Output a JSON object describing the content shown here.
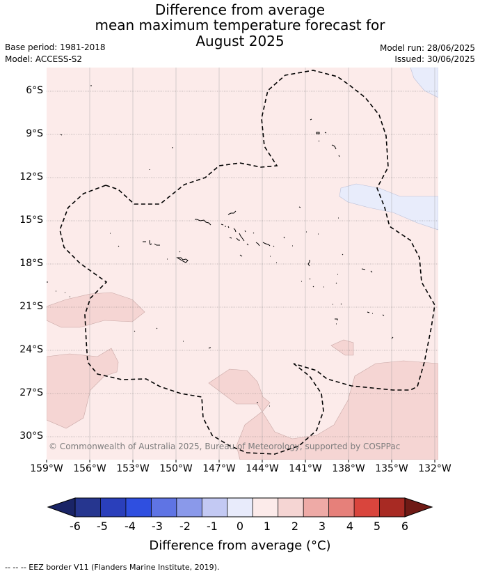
{
  "title": {
    "line1": "Difference from average",
    "line2": "mean maximum temperature forecast for",
    "line3": "August 2025"
  },
  "meta": {
    "base_period": "Base period: 1981-2018",
    "model": "Model: ACCESS-S2",
    "model_run": "Model run: 28/06/2025",
    "issued": "Issued: 30/06/2025"
  },
  "map": {
    "lat_labels": [
      "6°S",
      "9°S",
      "12°S",
      "15°S",
      "18°S",
      "21°S",
      "24°S",
      "27°S",
      "30°S"
    ],
    "lon_labels": [
      "159°W",
      "156°W",
      "153°W",
      "150°W",
      "147°W",
      "144°W",
      "141°W",
      "138°W",
      "135°W",
      "132°W"
    ],
    "copyright": "© Commonwealth of Australia 2025, Bureau of Meteorology, supported by COSPPac",
    "colors": {
      "background_0_to_1": "#fcebea",
      "anomaly_1_to_2": "#f5d5d3",
      "anomaly_neg1_to_0": "#e8ecfb",
      "eez_border": "#000000"
    }
  },
  "colorbar": {
    "ticks": [
      "-6",
      "-5",
      "-4",
      "-3",
      "-2",
      "-1",
      "0",
      "1",
      "2",
      "3",
      "4",
      "5",
      "6"
    ],
    "colors": [
      "#26368f",
      "#2a3fbb",
      "#2f4fe0",
      "#5f74e4",
      "#8a99ea",
      "#c3c9f3",
      "#e8ebfb",
      "#fcebea",
      "#f5d5d3",
      "#eeaaa6",
      "#e6807a",
      "#d9453d",
      "#a82a23"
    ],
    "under_color": "#1a2466",
    "over_color": "#6f1a15",
    "title": "Difference from average (°C)"
  },
  "footnote": "-- -- -- EEZ border V11 (Flanders Marine Institute, 2019)."
}
